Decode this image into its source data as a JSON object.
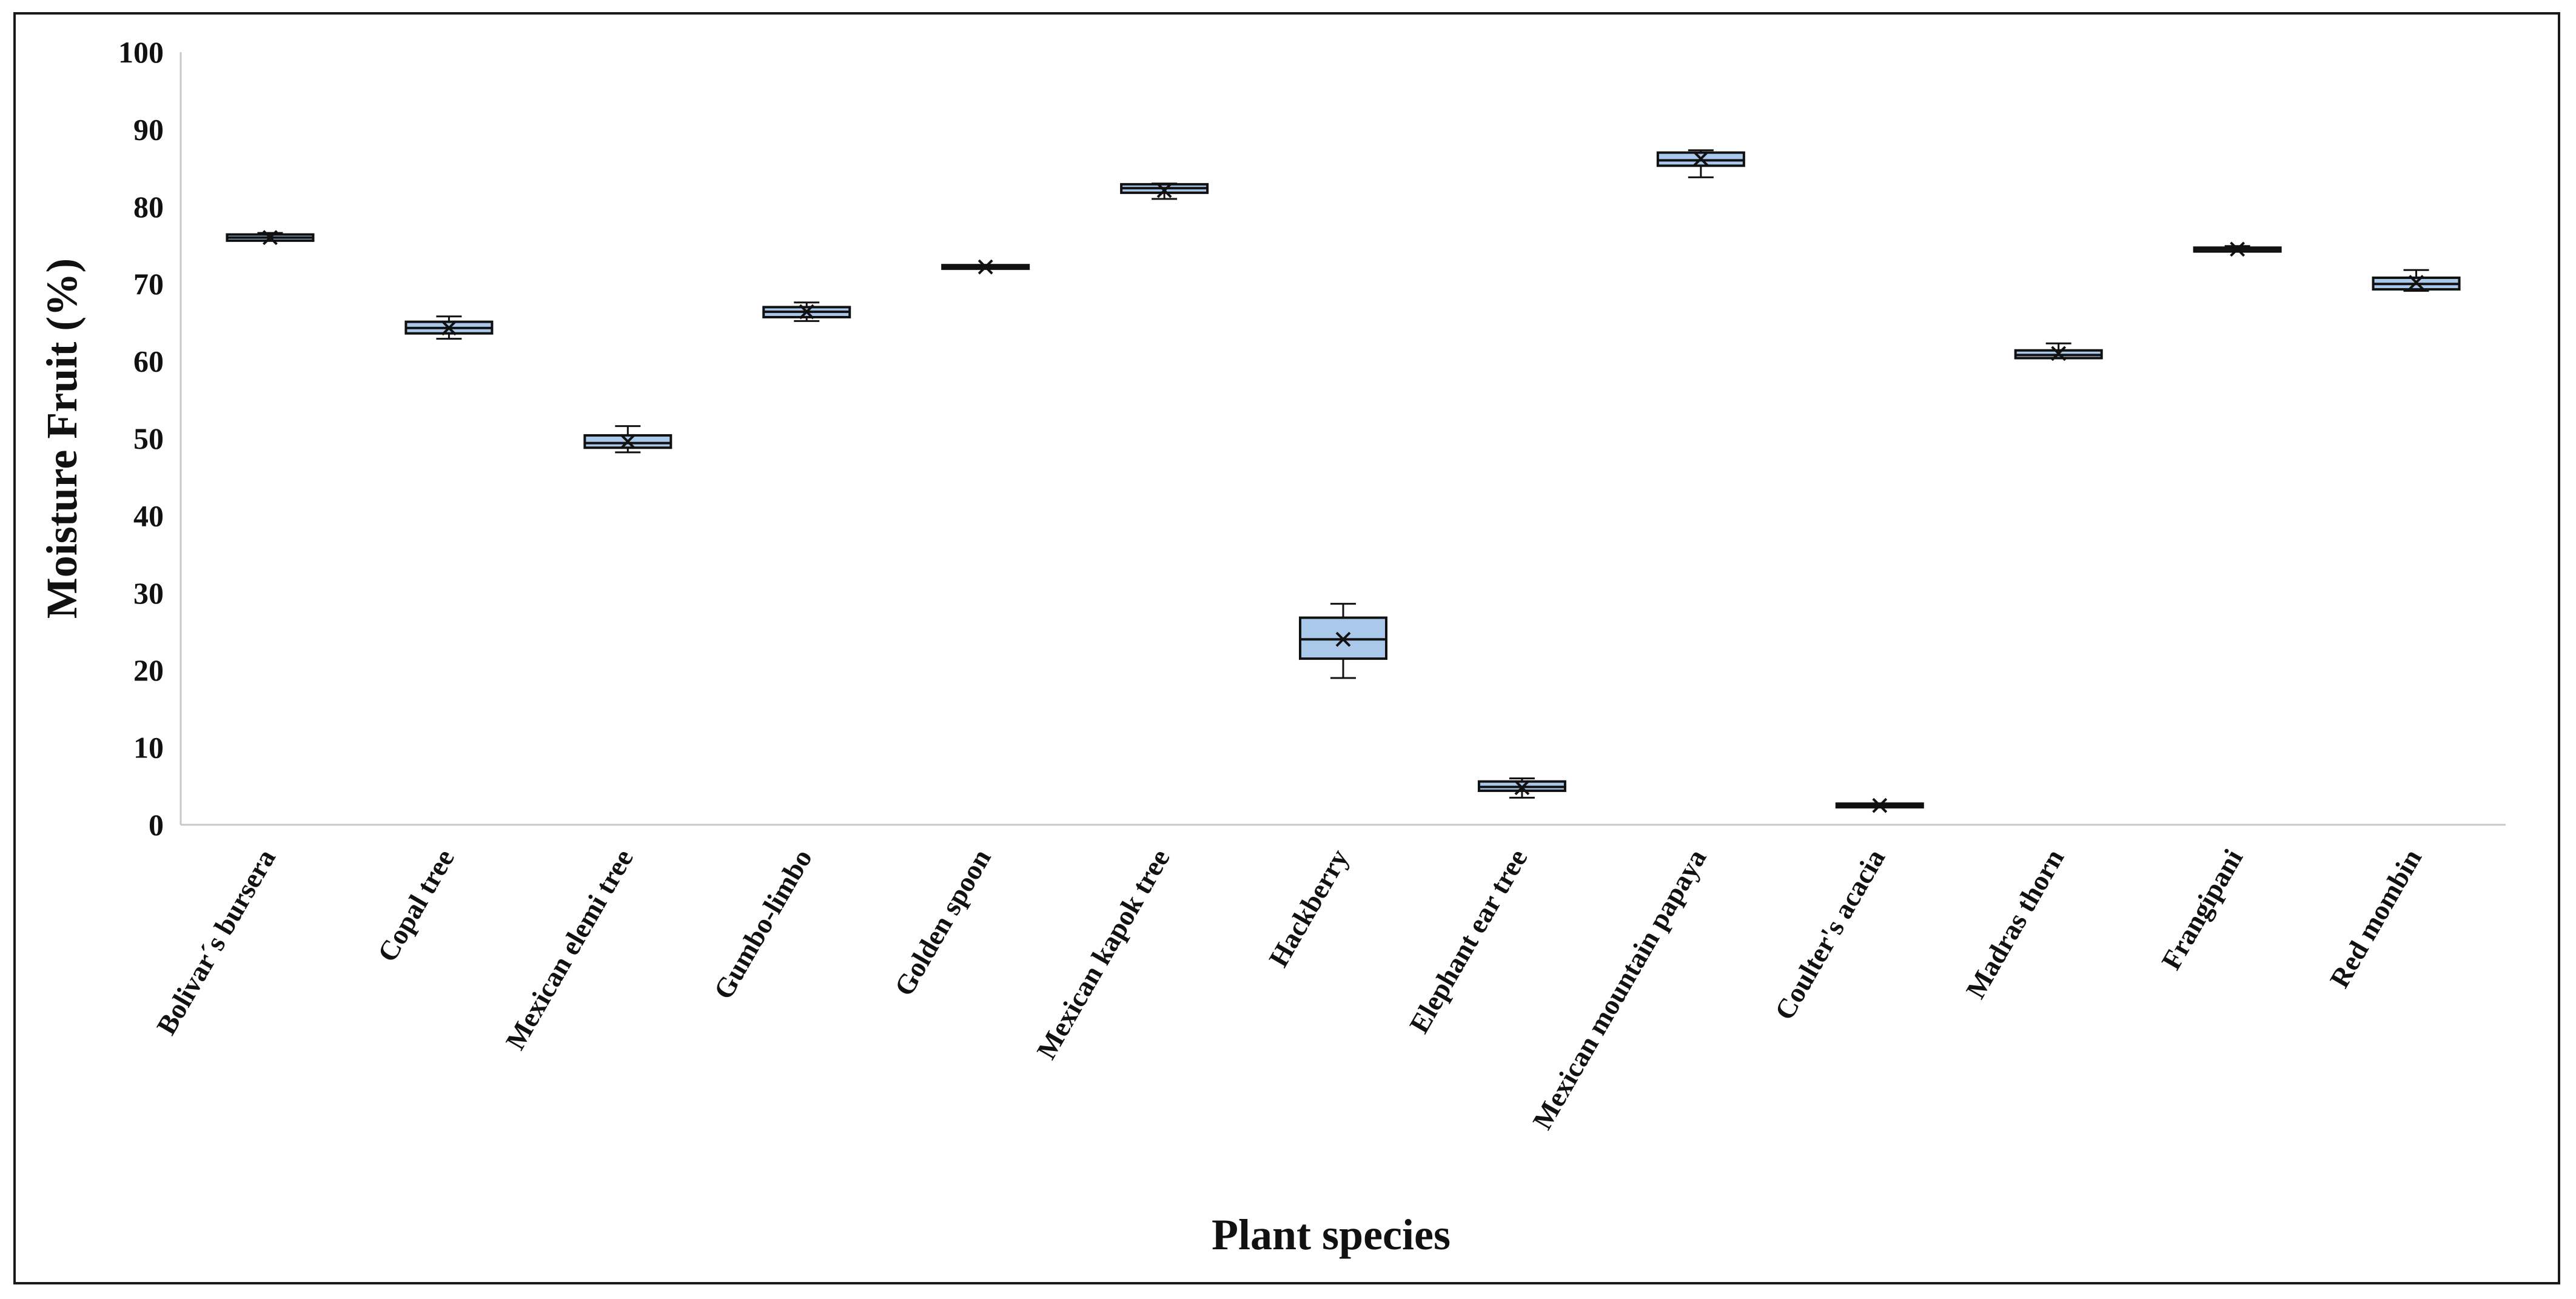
{
  "chart_data": {
    "type": "boxplot",
    "title": "",
    "xlabel": "Plant species",
    "ylabel": "Moisture Fruit (%)",
    "ylim": [
      0,
      100
    ],
    "yticks": [
      0,
      10,
      20,
      30,
      40,
      50,
      60,
      70,
      80,
      90,
      100
    ],
    "grid": false,
    "legend": "none",
    "box_color": "#a9c8ea",
    "edge_color": "#111111",
    "categories": [
      "Bolivar´s bursera",
      "Copal tree",
      "Mexican elemi tree",
      "Gumbo-limbo",
      "Golden spoon",
      "Mexican kapok tree",
      "Hackberry",
      "Elephant ear tree",
      "Mexican mountain papaya",
      "Coulter's acacia",
      "Madras thorn",
      "Frangipani",
      "Red mombin"
    ],
    "boxes": [
      {
        "min": 75.6,
        "q1": 75.6,
        "median": 76.0,
        "q3": 76.4,
        "max": 76.6,
        "mean": 76.0
      },
      {
        "min": 62.9,
        "q1": 63.6,
        "median": 64.3,
        "q3": 65.1,
        "max": 65.8,
        "mean": 64.3
      },
      {
        "min": 48.2,
        "q1": 48.8,
        "median": 49.4,
        "q3": 50.4,
        "max": 51.6,
        "mean": 49.6
      },
      {
        "min": 65.2,
        "q1": 65.7,
        "median": 66.4,
        "q3": 67.0,
        "max": 67.6,
        "mean": 66.4
      },
      {
        "min": 72.2,
        "q1": 72.2,
        "median": 72.2,
        "q3": 72.2,
        "max": 72.2,
        "mean": 72.2
      },
      {
        "min": 81.0,
        "q1": 81.8,
        "median": 82.4,
        "q3": 82.9,
        "max": 83.0,
        "mean": 82.1
      },
      {
        "min": 19.0,
        "q1": 21.5,
        "median": 24.0,
        "q3": 26.8,
        "max": 28.6,
        "mean": 24.0
      },
      {
        "min": 3.5,
        "q1": 4.4,
        "median": 4.9,
        "q3": 5.6,
        "max": 6.0,
        "mean": 4.8
      },
      {
        "min": 83.8,
        "q1": 85.3,
        "median": 86.0,
        "q3": 87.0,
        "max": 87.3,
        "mean": 86.2
      },
      {
        "min": 2.5,
        "q1": 2.5,
        "median": 2.5,
        "q3": 2.5,
        "max": 2.5,
        "mean": 2.5
      },
      {
        "min": 60.4,
        "q1": 60.4,
        "median": 60.8,
        "q3": 61.4,
        "max": 62.3,
        "mean": 61.0
      },
      {
        "min": 74.2,
        "q1": 74.2,
        "median": 74.5,
        "q3": 74.7,
        "max": 74.9,
        "mean": 74.5
      },
      {
        "min": 69.1,
        "q1": 69.3,
        "median": 70.0,
        "q3": 70.8,
        "max": 71.8,
        "mean": 70.2
      }
    ]
  }
}
